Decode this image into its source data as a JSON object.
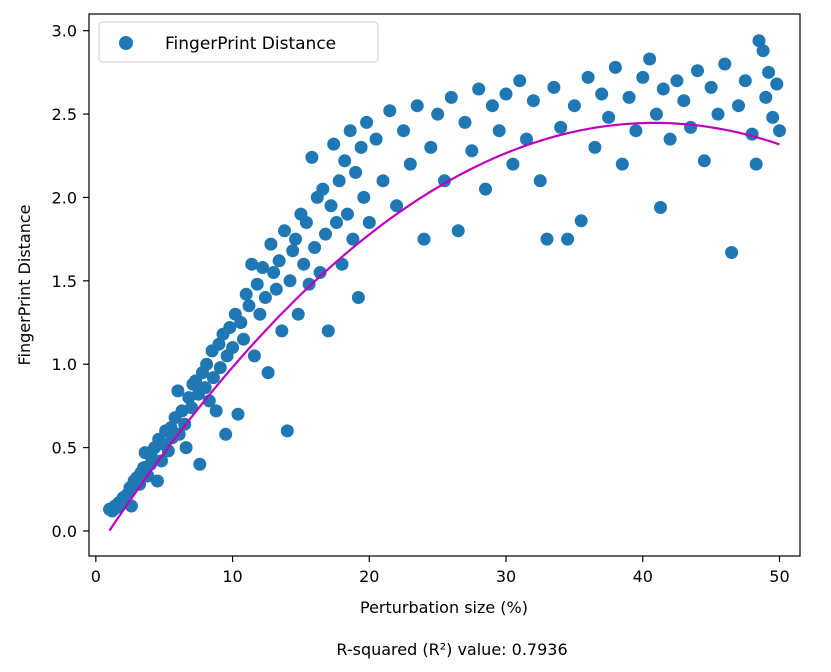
{
  "chart_data": {
    "type": "scatter",
    "title": "",
    "xlabel": "Perturbation size (%)",
    "ylabel": "FingerPrint Distance",
    "xlim": [
      -0.5,
      51.5
    ],
    "ylim": [
      -0.15,
      3.1
    ],
    "xticks": [
      0,
      10,
      20,
      30,
      40,
      50
    ],
    "xtick_labels": [
      "0",
      "10",
      "20",
      "30",
      "40",
      "50"
    ],
    "yticks": [
      0.0,
      0.5,
      1.0,
      1.5,
      2.0,
      2.5,
      3.0
    ],
    "ytick_labels": [
      "0.0",
      "0.5",
      "1.0",
      "1.5",
      "2.0",
      "2.5",
      "3.0"
    ],
    "grid": false,
    "legend": {
      "position": "top-left",
      "entries": [
        "FingerPrint Distance"
      ]
    },
    "series": [
      {
        "name": "FingerPrint Distance",
        "kind": "scatter",
        "color": "#1f77b4",
        "points": [
          [
            1.0,
            0.13
          ],
          [
            1.2,
            0.12
          ],
          [
            1.4,
            0.15
          ],
          [
            1.5,
            0.14
          ],
          [
            1.7,
            0.17
          ],
          [
            1.8,
            0.16
          ],
          [
            2.0,
            0.2
          ],
          [
            2.1,
            0.18
          ],
          [
            2.3,
            0.22
          ],
          [
            2.5,
            0.26
          ],
          [
            2.6,
            0.15
          ],
          [
            2.8,
            0.3
          ],
          [
            3.0,
            0.32
          ],
          [
            3.2,
            0.28
          ],
          [
            3.3,
            0.35
          ],
          [
            3.5,
            0.38
          ],
          [
            3.6,
            0.47
          ],
          [
            3.8,
            0.33
          ],
          [
            4.0,
            0.4
          ],
          [
            4.1,
            0.44
          ],
          [
            4.3,
            0.5
          ],
          [
            4.5,
            0.3
          ],
          [
            4.6,
            0.55
          ],
          [
            4.8,
            0.42
          ],
          [
            5.0,
            0.52
          ],
          [
            5.1,
            0.6
          ],
          [
            5.3,
            0.48
          ],
          [
            5.5,
            0.62
          ],
          [
            5.6,
            0.56
          ],
          [
            5.8,
            0.68
          ],
          [
            6.0,
            0.84
          ],
          [
            6.1,
            0.58
          ],
          [
            6.3,
            0.72
          ],
          [
            6.5,
            0.64
          ],
          [
            6.6,
            0.5
          ],
          [
            6.8,
            0.8
          ],
          [
            7.0,
            0.74
          ],
          [
            7.1,
            0.88
          ],
          [
            7.3,
            0.9
          ],
          [
            7.5,
            0.82
          ],
          [
            7.6,
            0.4
          ],
          [
            7.8,
            0.95
          ],
          [
            8.0,
            0.86
          ],
          [
            8.1,
            1.0
          ],
          [
            8.3,
            0.78
          ],
          [
            8.5,
            1.08
          ],
          [
            8.6,
            0.92
          ],
          [
            8.8,
            0.72
          ],
          [
            9.0,
            1.12
          ],
          [
            9.1,
            0.98
          ],
          [
            9.3,
            1.18
          ],
          [
            9.5,
            0.58
          ],
          [
            9.6,
            1.05
          ],
          [
            9.8,
            1.22
          ],
          [
            10.0,
            1.1
          ],
          [
            10.2,
            1.3
          ],
          [
            10.4,
            0.7
          ],
          [
            10.6,
            1.25
          ],
          [
            10.8,
            1.15
          ],
          [
            11.0,
            1.42
          ],
          [
            11.2,
            1.35
          ],
          [
            11.4,
            1.6
          ],
          [
            11.6,
            1.05
          ],
          [
            11.8,
            1.48
          ],
          [
            12.0,
            1.3
          ],
          [
            12.2,
            1.58
          ],
          [
            12.4,
            1.4
          ],
          [
            12.6,
            0.95
          ],
          [
            12.8,
            1.72
          ],
          [
            13.0,
            1.55
          ],
          [
            13.2,
            1.45
          ],
          [
            13.4,
            1.62
          ],
          [
            13.6,
            1.2
          ],
          [
            13.8,
            1.8
          ],
          [
            14.0,
            0.6
          ],
          [
            14.2,
            1.5
          ],
          [
            14.4,
            1.68
          ],
          [
            14.6,
            1.75
          ],
          [
            14.8,
            1.3
          ],
          [
            15.0,
            1.9
          ],
          [
            15.2,
            1.6
          ],
          [
            15.4,
            1.85
          ],
          [
            15.6,
            1.48
          ],
          [
            15.8,
            2.24
          ],
          [
            16.0,
            1.7
          ],
          [
            16.2,
            2.0
          ],
          [
            16.4,
            1.55
          ],
          [
            16.6,
            2.05
          ],
          [
            16.8,
            1.78
          ],
          [
            17.0,
            1.2
          ],
          [
            17.2,
            1.95
          ],
          [
            17.4,
            2.32
          ],
          [
            17.6,
            1.85
          ],
          [
            17.8,
            2.1
          ],
          [
            18.0,
            1.6
          ],
          [
            18.2,
            2.22
          ],
          [
            18.4,
            1.9
          ],
          [
            18.6,
            2.4
          ],
          [
            18.8,
            1.75
          ],
          [
            19.0,
            2.15
          ],
          [
            19.2,
            1.4
          ],
          [
            19.4,
            2.3
          ],
          [
            19.6,
            2.0
          ],
          [
            19.8,
            2.45
          ],
          [
            20.0,
            1.85
          ],
          [
            20.5,
            2.35
          ],
          [
            21.0,
            2.1
          ],
          [
            21.5,
            2.52
          ],
          [
            22.0,
            1.95
          ],
          [
            22.5,
            2.4
          ],
          [
            23.0,
            2.2
          ],
          [
            23.5,
            2.55
          ],
          [
            24.0,
            1.75
          ],
          [
            24.5,
            2.3
          ],
          [
            25.0,
            2.5
          ],
          [
            25.5,
            2.1
          ],
          [
            26.0,
            2.6
          ],
          [
            26.5,
            1.8
          ],
          [
            27.0,
            2.45
          ],
          [
            27.5,
            2.28
          ],
          [
            28.0,
            2.65
          ],
          [
            28.5,
            2.05
          ],
          [
            29.0,
            2.55
          ],
          [
            29.5,
            2.4
          ],
          [
            30.0,
            2.62
          ],
          [
            30.5,
            2.2
          ],
          [
            31.0,
            2.7
          ],
          [
            31.5,
            2.35
          ],
          [
            32.0,
            2.58
          ],
          [
            32.5,
            2.1
          ],
          [
            33.0,
            1.75
          ],
          [
            33.5,
            2.66
          ],
          [
            34.0,
            2.42
          ],
          [
            34.5,
            1.75
          ],
          [
            35.0,
            2.55
          ],
          [
            35.5,
            1.86
          ],
          [
            36.0,
            2.72
          ],
          [
            36.5,
            2.3
          ],
          [
            37.0,
            2.62
          ],
          [
            37.5,
            2.48
          ],
          [
            38.0,
            2.78
          ],
          [
            38.5,
            2.2
          ],
          [
            39.0,
            2.6
          ],
          [
            39.5,
            2.4
          ],
          [
            40.0,
            2.72
          ],
          [
            40.5,
            2.83
          ],
          [
            41.0,
            2.5
          ],
          [
            41.3,
            1.94
          ],
          [
            41.5,
            2.65
          ],
          [
            42.0,
            2.35
          ],
          [
            42.5,
            2.7
          ],
          [
            43.0,
            2.58
          ],
          [
            43.5,
            2.42
          ],
          [
            44.0,
            2.76
          ],
          [
            44.5,
            2.22
          ],
          [
            45.0,
            2.66
          ],
          [
            45.5,
            2.5
          ],
          [
            46.0,
            2.8
          ],
          [
            46.5,
            1.67
          ],
          [
            47.0,
            2.55
          ],
          [
            47.5,
            2.7
          ],
          [
            48.0,
            2.38
          ],
          [
            48.3,
            2.2
          ],
          [
            48.5,
            2.94
          ],
          [
            48.8,
            2.88
          ],
          [
            49.0,
            2.6
          ],
          [
            49.2,
            2.75
          ],
          [
            49.5,
            2.48
          ],
          [
            49.8,
            2.68
          ],
          [
            50.0,
            2.4
          ]
        ]
      },
      {
        "name": "",
        "kind": "line",
        "color": "#bf00bf",
        "coefficients": {
          "a": -0.00154,
          "b": 0.1258,
          "c": -0.122
        },
        "x_range": [
          1,
          50
        ]
      }
    ],
    "caption": "R-squared (R²) value: 0.7936"
  }
}
